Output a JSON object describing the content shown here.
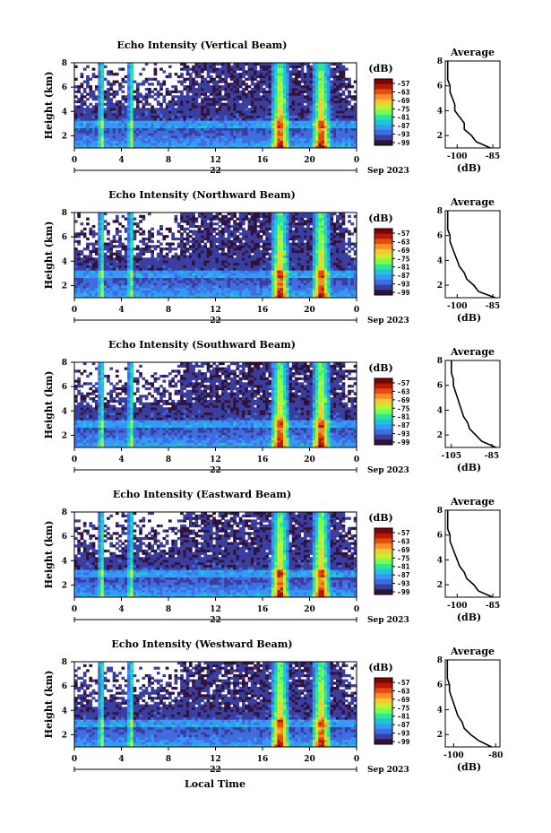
{
  "xlabel": "Local Time",
  "date_suffix": "Sep 2023",
  "date_day": "22",
  "avg_title": "Average",
  "avg_xlabel": "(dB)",
  "colorbar_label": "(dB)",
  "colorbar_ticks": [
    "-57",
    "-63",
    "-69",
    "-75",
    "-81",
    "-87",
    "-93",
    "-99"
  ],
  "colormap": [
    "#30123b",
    "#3a3e9e",
    "#3f6ddf",
    "#3499f9",
    "#1fc7d5",
    "#2ae79a",
    "#79fd52",
    "#c3f033",
    "#f8c932",
    "#fc8d27",
    "#e44d0c",
    "#b41a04",
    "#7a0403"
  ],
  "chart_data": [
    {
      "type": "heatmap",
      "title": "Echo Intensity (Vertical Beam)",
      "ylabel": "Height (km)",
      "x_ticks": [
        "0",
        "4",
        "8",
        "12",
        "16",
        "20",
        "0"
      ],
      "xlim": [
        0,
        24
      ],
      "ylim": [
        1,
        8
      ],
      "y_ticks": [
        "2",
        "4",
        "6",
        "8"
      ],
      "avg_x_ticks": [
        "-100",
        "-85"
      ],
      "avg_xlim": [
        -105,
        -82
      ],
      "avg_profile": [
        -86,
        -92,
        -94,
        -97,
        -97,
        -99,
        -101,
        -101,
        -102,
        -103,
        -103,
        -104,
        -104,
        -104,
        -104
      ],
      "strong_columns": [
        2.3,
        4.8,
        17.5,
        21.0
      ]
    },
    {
      "type": "heatmap",
      "title": "Echo Intensity (Northward Beam)",
      "ylabel": "Height (km)",
      "x_ticks": [
        "0",
        "4",
        "8",
        "12",
        "16",
        "20",
        "0"
      ],
      "xlim": [
        0,
        24
      ],
      "ylim": [
        1,
        8
      ],
      "y_ticks": [
        "2",
        "4",
        "6",
        "8"
      ],
      "avg_x_ticks": [
        "-100",
        "-85"
      ],
      "avg_xlim": [
        -105,
        -82
      ],
      "avg_profile": [
        -84,
        -91,
        -93,
        -96,
        -97,
        -99,
        -100,
        -101,
        -102,
        -103,
        -103,
        -104,
        -104,
        -104,
        -104
      ],
      "strong_columns": [
        2.3,
        4.8,
        17.5,
        21.0
      ]
    },
    {
      "type": "heatmap",
      "title": "Echo Intensity (Southward Beam)",
      "ylabel": "Height (km)",
      "x_ticks": [
        "0",
        "4",
        "8",
        "12",
        "16",
        "20",
        "0"
      ],
      "xlim": [
        0,
        24
      ],
      "ylim": [
        1,
        8
      ],
      "y_ticks": [
        "2",
        "4",
        "6",
        "8"
      ],
      "avg_x_ticks": [
        "-105",
        "-85"
      ],
      "avg_xlim": [
        -108,
        -81
      ],
      "avg_profile": [
        -83,
        -90,
        -93,
        -96,
        -97,
        -99,
        -100,
        -101,
        -102,
        -103,
        -104,
        -104,
        -105,
        -105,
        -105
      ],
      "strong_columns": [
        2.3,
        4.8,
        17.5,
        21.0
      ]
    },
    {
      "type": "heatmap",
      "title": "Echo Intensity (Eastward Beam)",
      "ylabel": "Height (km)",
      "x_ticks": [
        "0",
        "4",
        "8",
        "12",
        "16",
        "20",
        "0"
      ],
      "xlim": [
        0,
        24
      ],
      "ylim": [
        1,
        8
      ],
      "y_ticks": [
        "2",
        "4",
        "6",
        "8"
      ],
      "avg_x_ticks": [
        "-100",
        "-85"
      ],
      "avg_xlim": [
        -105,
        -82
      ],
      "avg_profile": [
        -85,
        -91,
        -93,
        -96,
        -97,
        -99,
        -100,
        -101,
        -102,
        -103,
        -103,
        -104,
        -104,
        -104,
        -104
      ],
      "strong_columns": [
        2.3,
        4.8,
        17.5,
        21.0
      ]
    },
    {
      "type": "heatmap",
      "title": "Echo Intensity (Westward Beam)",
      "ylabel": "Height (km)",
      "x_ticks": [
        "0",
        "4",
        "8",
        "12",
        "16",
        "20",
        "0"
      ],
      "xlim": [
        0,
        24
      ],
      "ylim": [
        1,
        8
      ],
      "y_ticks": [
        "2",
        "4",
        "6",
        "8"
      ],
      "avg_x_ticks": [
        "-100",
        "-80"
      ],
      "avg_xlim": [
        -104,
        -78
      ],
      "avg_profile": [
        -82,
        -88,
        -92,
        -95,
        -96,
        -98,
        -99,
        -100,
        -101,
        -102,
        -102,
        -103,
        -103,
        -103,
        -103
      ],
      "strong_columns": [
        2.3,
        4.8,
        17.5,
        21.0
      ]
    }
  ]
}
